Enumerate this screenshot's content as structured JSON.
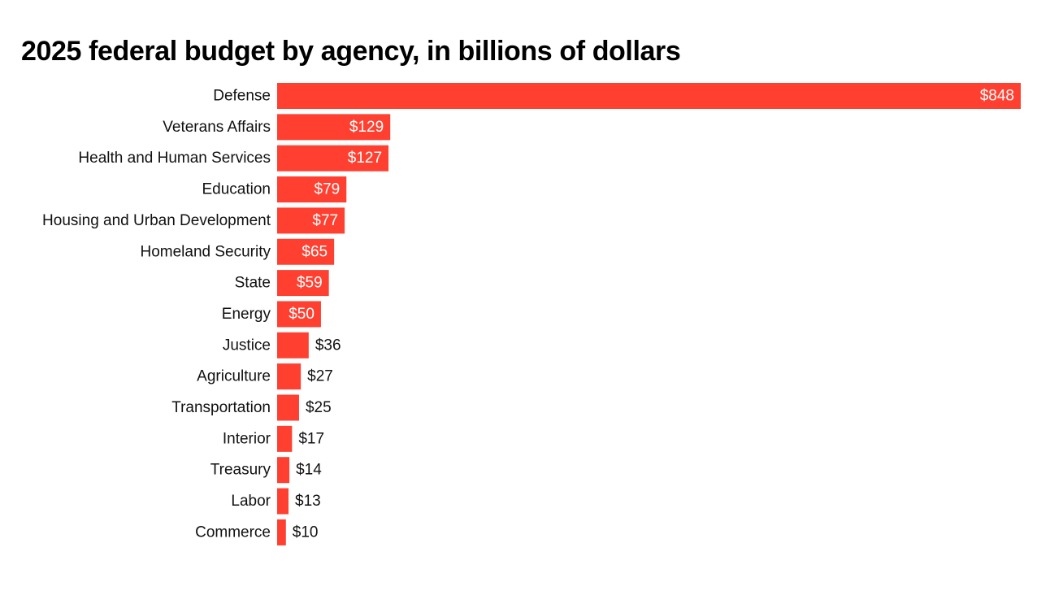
{
  "chart_data": {
    "type": "bar",
    "orientation": "horizontal",
    "title": "2025 federal budget by agency, in billions of dollars",
    "xlabel": "",
    "ylabel": "",
    "value_prefix": "$",
    "bar_color": "#ff4031",
    "categories": [
      "Defense",
      "Veterans Affairs",
      "Health and Human Services",
      "Education",
      "Housing and Urban Development",
      "Homeland Security",
      "State",
      "Energy",
      "Justice",
      "Agriculture",
      "Transportation",
      "Interior",
      "Treasury",
      "Labor",
      "Commerce"
    ],
    "values": [
      848,
      129,
      127,
      79,
      77,
      65,
      59,
      50,
      36,
      27,
      25,
      17,
      14,
      13,
      10
    ],
    "xlim": [
      0,
      848
    ],
    "grid": false,
    "legend": "none"
  }
}
